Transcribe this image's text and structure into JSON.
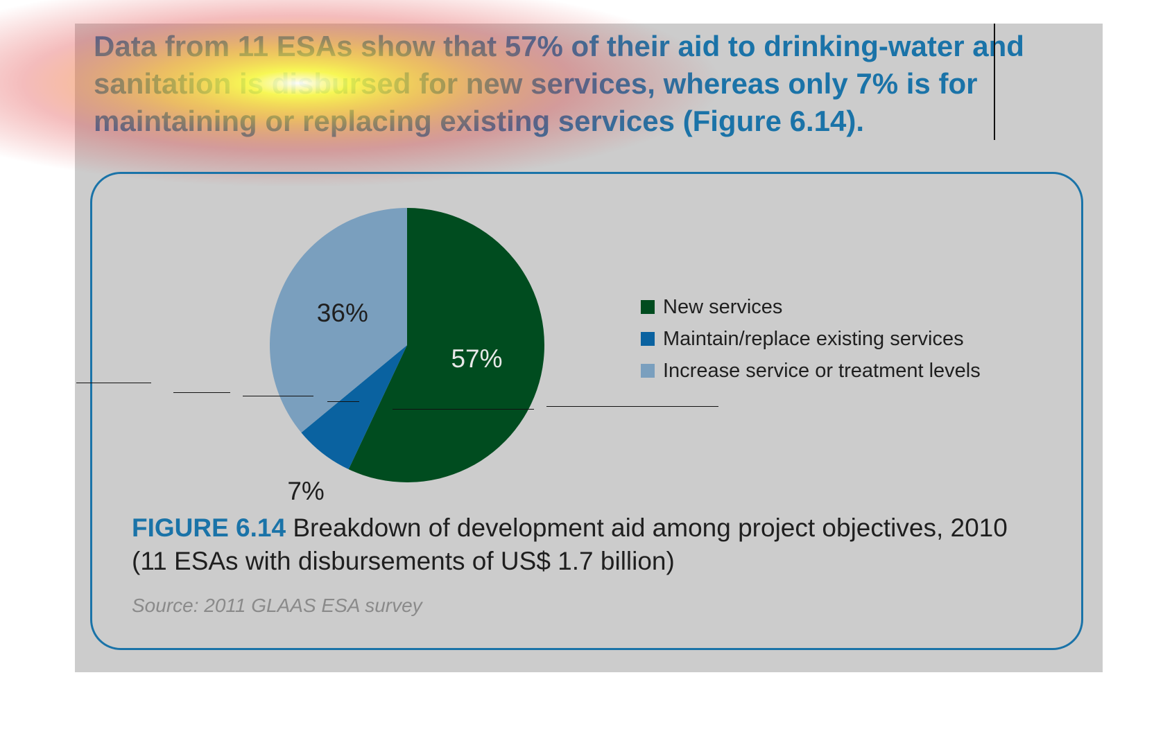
{
  "headline": {
    "text": "Data from 11 ESAs show that 57% of their aid to drinking-water and sanitation is disbursed for new services, whereas only 7% is for maintaining or replacing existing services (Figure 6.14)."
  },
  "figure": {
    "caption_label": "FIGURE 6.14",
    "caption_text": " Breakdown of development aid among project objectives, 2010 (11 ESAs with disbursements of US$ 1.7 billion)",
    "source": "Source: 2011 GLAAS ESA survey"
  },
  "colors": {
    "accent_blue": "#1a73a8",
    "panel_gray": "#cccccc"
  },
  "chart_data": {
    "type": "pie",
    "title": "",
    "series": [
      {
        "values": [
          57,
          7,
          36
        ],
        "labels": [
          "New services",
          "Maintain/replace existing services",
          "Increase service or treatment levels"
        ],
        "data_labels": [
          "57%",
          "7%",
          "36%"
        ],
        "colors": [
          "#004c1f",
          "#0a62a0",
          "#7a9fbe"
        ]
      }
    ],
    "legend_position": "right",
    "start_angle": "12 o'clock, clockwise"
  }
}
